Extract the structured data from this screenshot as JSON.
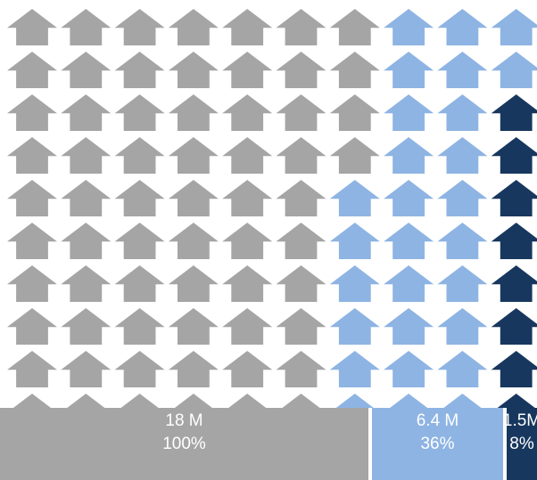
{
  "chart_data": {
    "type": "pictograph",
    "icon": "house-icon",
    "grid": {
      "rows": 10,
      "cols": 10
    },
    "total_icons": 100,
    "series": [
      {
        "key": "all",
        "value_label": "18 M",
        "percent_label": "100%",
        "value": 18,
        "percent": 100,
        "icon_count": 100,
        "color": "#A5A5A5"
      },
      {
        "key": "mid",
        "value_label": "6.4 M",
        "percent_label": "36%",
        "value": 6.4,
        "percent": 36,
        "icon_count": 36,
        "color": "#8EB4E3"
      },
      {
        "key": "small",
        "value_label": "1.5M",
        "percent_label": "8%",
        "value": 1.5,
        "percent": 8,
        "icon_count": 8,
        "color": "#17375E"
      }
    ]
  }
}
